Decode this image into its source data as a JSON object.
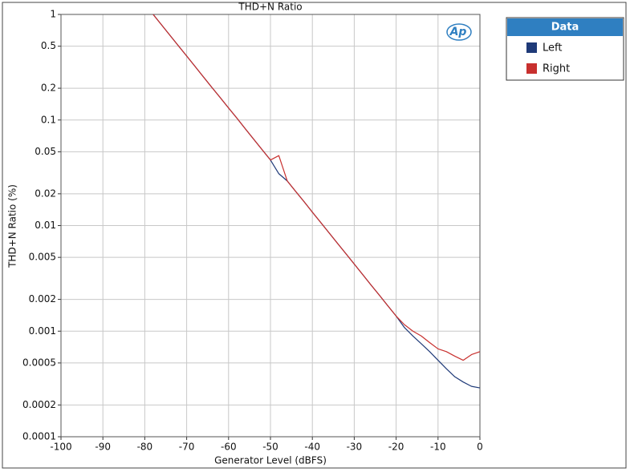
{
  "chart_data": {
    "type": "line",
    "title": "THD+N Ratio",
    "x_label": "Generator Level (dBFS)",
    "y_label": "THD+N Ratio (%)",
    "logo": "Ap",
    "x": [
      -78,
      -76,
      -74,
      -72,
      -70,
      -68,
      -66,
      -64,
      -62,
      -60,
      -58,
      -56,
      -54,
      -52,
      -50,
      -48,
      -46,
      -44,
      -42,
      -40,
      -38,
      -36,
      -34,
      -32,
      -30,
      -28,
      -26,
      -24,
      -22,
      -20,
      -18,
      -16,
      -14,
      -12,
      -10,
      -8,
      -6,
      -4,
      -2,
      0
    ],
    "series": [
      {
        "name": "Left",
        "color": "#1f3a78",
        "values": [
          1,
          0.797,
          0.635,
          0.506,
          0.404,
          0.322,
          0.256,
          0.204,
          0.163,
          0.13,
          0.104,
          0.0825,
          0.0657,
          0.0524,
          0.0418,
          0.031,
          0.0265,
          0.0211,
          0.0169,
          0.0134,
          0.0107,
          0.00853,
          0.0068,
          0.00542,
          0.00432,
          0.00344,
          0.00274,
          0.00219,
          0.00174,
          0.00139,
          0.00108,
          0.0009,
          0.00076,
          0.00064,
          0.00053,
          0.00044,
          0.00037,
          0.00033,
          0.0003,
          0.00029
        ]
      },
      {
        "name": "Right",
        "color": "#c8302e",
        "values": [
          1,
          0.797,
          0.635,
          0.506,
          0.404,
          0.322,
          0.256,
          0.204,
          0.163,
          0.13,
          0.104,
          0.0825,
          0.0657,
          0.0524,
          0.0418,
          0.046,
          0.0265,
          0.0211,
          0.0169,
          0.0134,
          0.0107,
          0.00853,
          0.0068,
          0.00542,
          0.00432,
          0.00344,
          0.00274,
          0.00219,
          0.00174,
          0.00139,
          0.00115,
          0.001,
          0.0009,
          0.00078,
          0.00068,
          0.00064,
          0.00058,
          0.00053,
          0.0006,
          0.00064
        ]
      }
    ],
    "legend_title": "Data",
    "legend": "outside-right",
    "xlim": [
      -100,
      0
    ],
    "xticks": [
      -100,
      -90,
      -80,
      -70,
      -60,
      -50,
      -40,
      -30,
      -20,
      -10,
      0
    ],
    "ylim": [
      0.0001,
      1
    ],
    "yticks": [
      1,
      0.5,
      0.2,
      0.1,
      0.05,
      0.02,
      0.01,
      0.005,
      0.002,
      0.001,
      0.0005,
      0.0002,
      0.0001
    ],
    "ylog": true,
    "grid": true
  }
}
